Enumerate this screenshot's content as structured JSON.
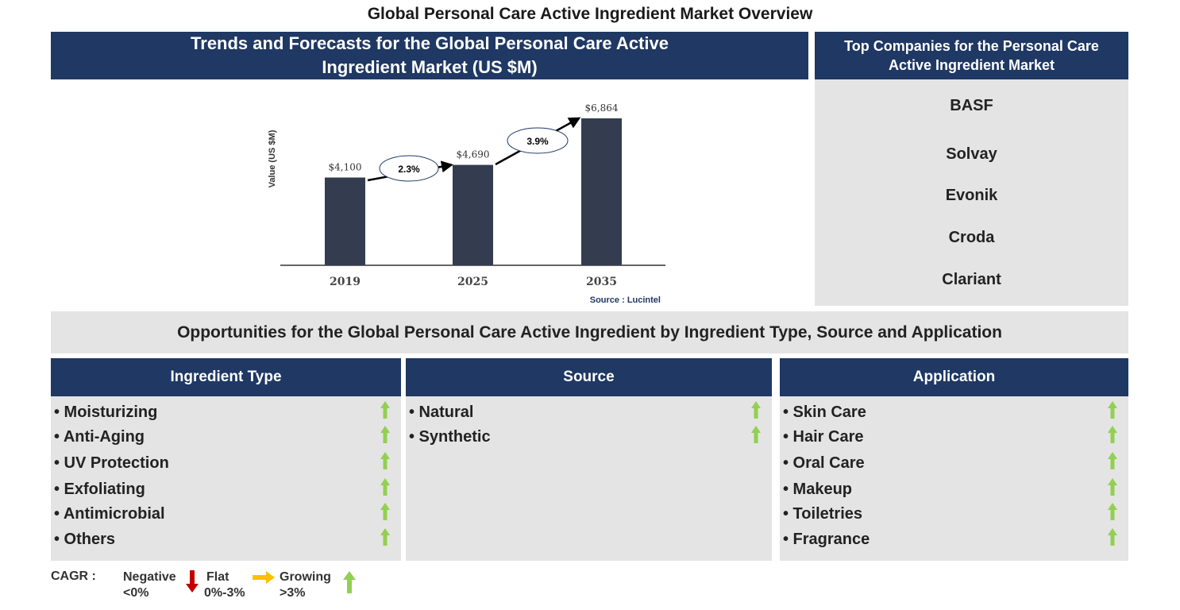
{
  "title": "Global Personal Care Active Ingredient Market Overview",
  "trend_header": "Trends and Forecasts for the Global Personal Care Active Ingredient Market (US $M)",
  "companies_header": "Top Companies for the Personal Care Active Ingredient Market",
  "companies": [
    "BASF",
    "Solvay",
    "Evonik",
    "Croda",
    "Clariant"
  ],
  "opportunities_header": "Opportunities for the Global Personal Care Active Ingredient by Ingredient Type, Source and Application",
  "segments": [
    {
      "header": "Ingredient Type",
      "items": [
        "• Moisturizing",
        "• Anti-Aging",
        "• UV Protection",
        "• Exfoliating",
        "• Antimicrobial",
        "• Others"
      ],
      "trend": [
        "growing",
        "growing",
        "growing",
        "growing",
        "growing",
        "growing"
      ]
    },
    {
      "header": "Source",
      "items": [
        "• Natural",
        "• Synthetic"
      ],
      "trend": [
        "growing",
        "growing"
      ]
    },
    {
      "header": "Application",
      "items": [
        "• Skin Care",
        "• Hair Care",
        "• Oral Care",
        "• Makeup",
        "• Toiletries",
        "• Fragrance"
      ],
      "trend": [
        "growing",
        "growing",
        "growing",
        "growing",
        "growing",
        "growing"
      ]
    }
  ],
  "legend": {
    "cagr": "CAGR :",
    "negative": "Negative",
    "negative_range": "<0%",
    "flat": "Flat",
    "flat_range": "0%-3%",
    "growing": "Growing",
    "growing_range": ">3%",
    "colors": {
      "negative": "#c00000",
      "flat": "#ffc000",
      "growing": "#92d050"
    }
  },
  "chart_data": {
    "type": "bar",
    "categories": [
      "2019",
      "2025",
      "2035"
    ],
    "values": [
      4100,
      4690,
      6864
    ],
    "data_labels": [
      "$4,100",
      "$4,690",
      "$6,864"
    ],
    "cagr_labels": [
      "2.3%",
      "3.9%"
    ],
    "ylabel": "Value (US $M)",
    "source": "Source : Lucintel",
    "bar_color": "#333d4f",
    "grid": false
  }
}
